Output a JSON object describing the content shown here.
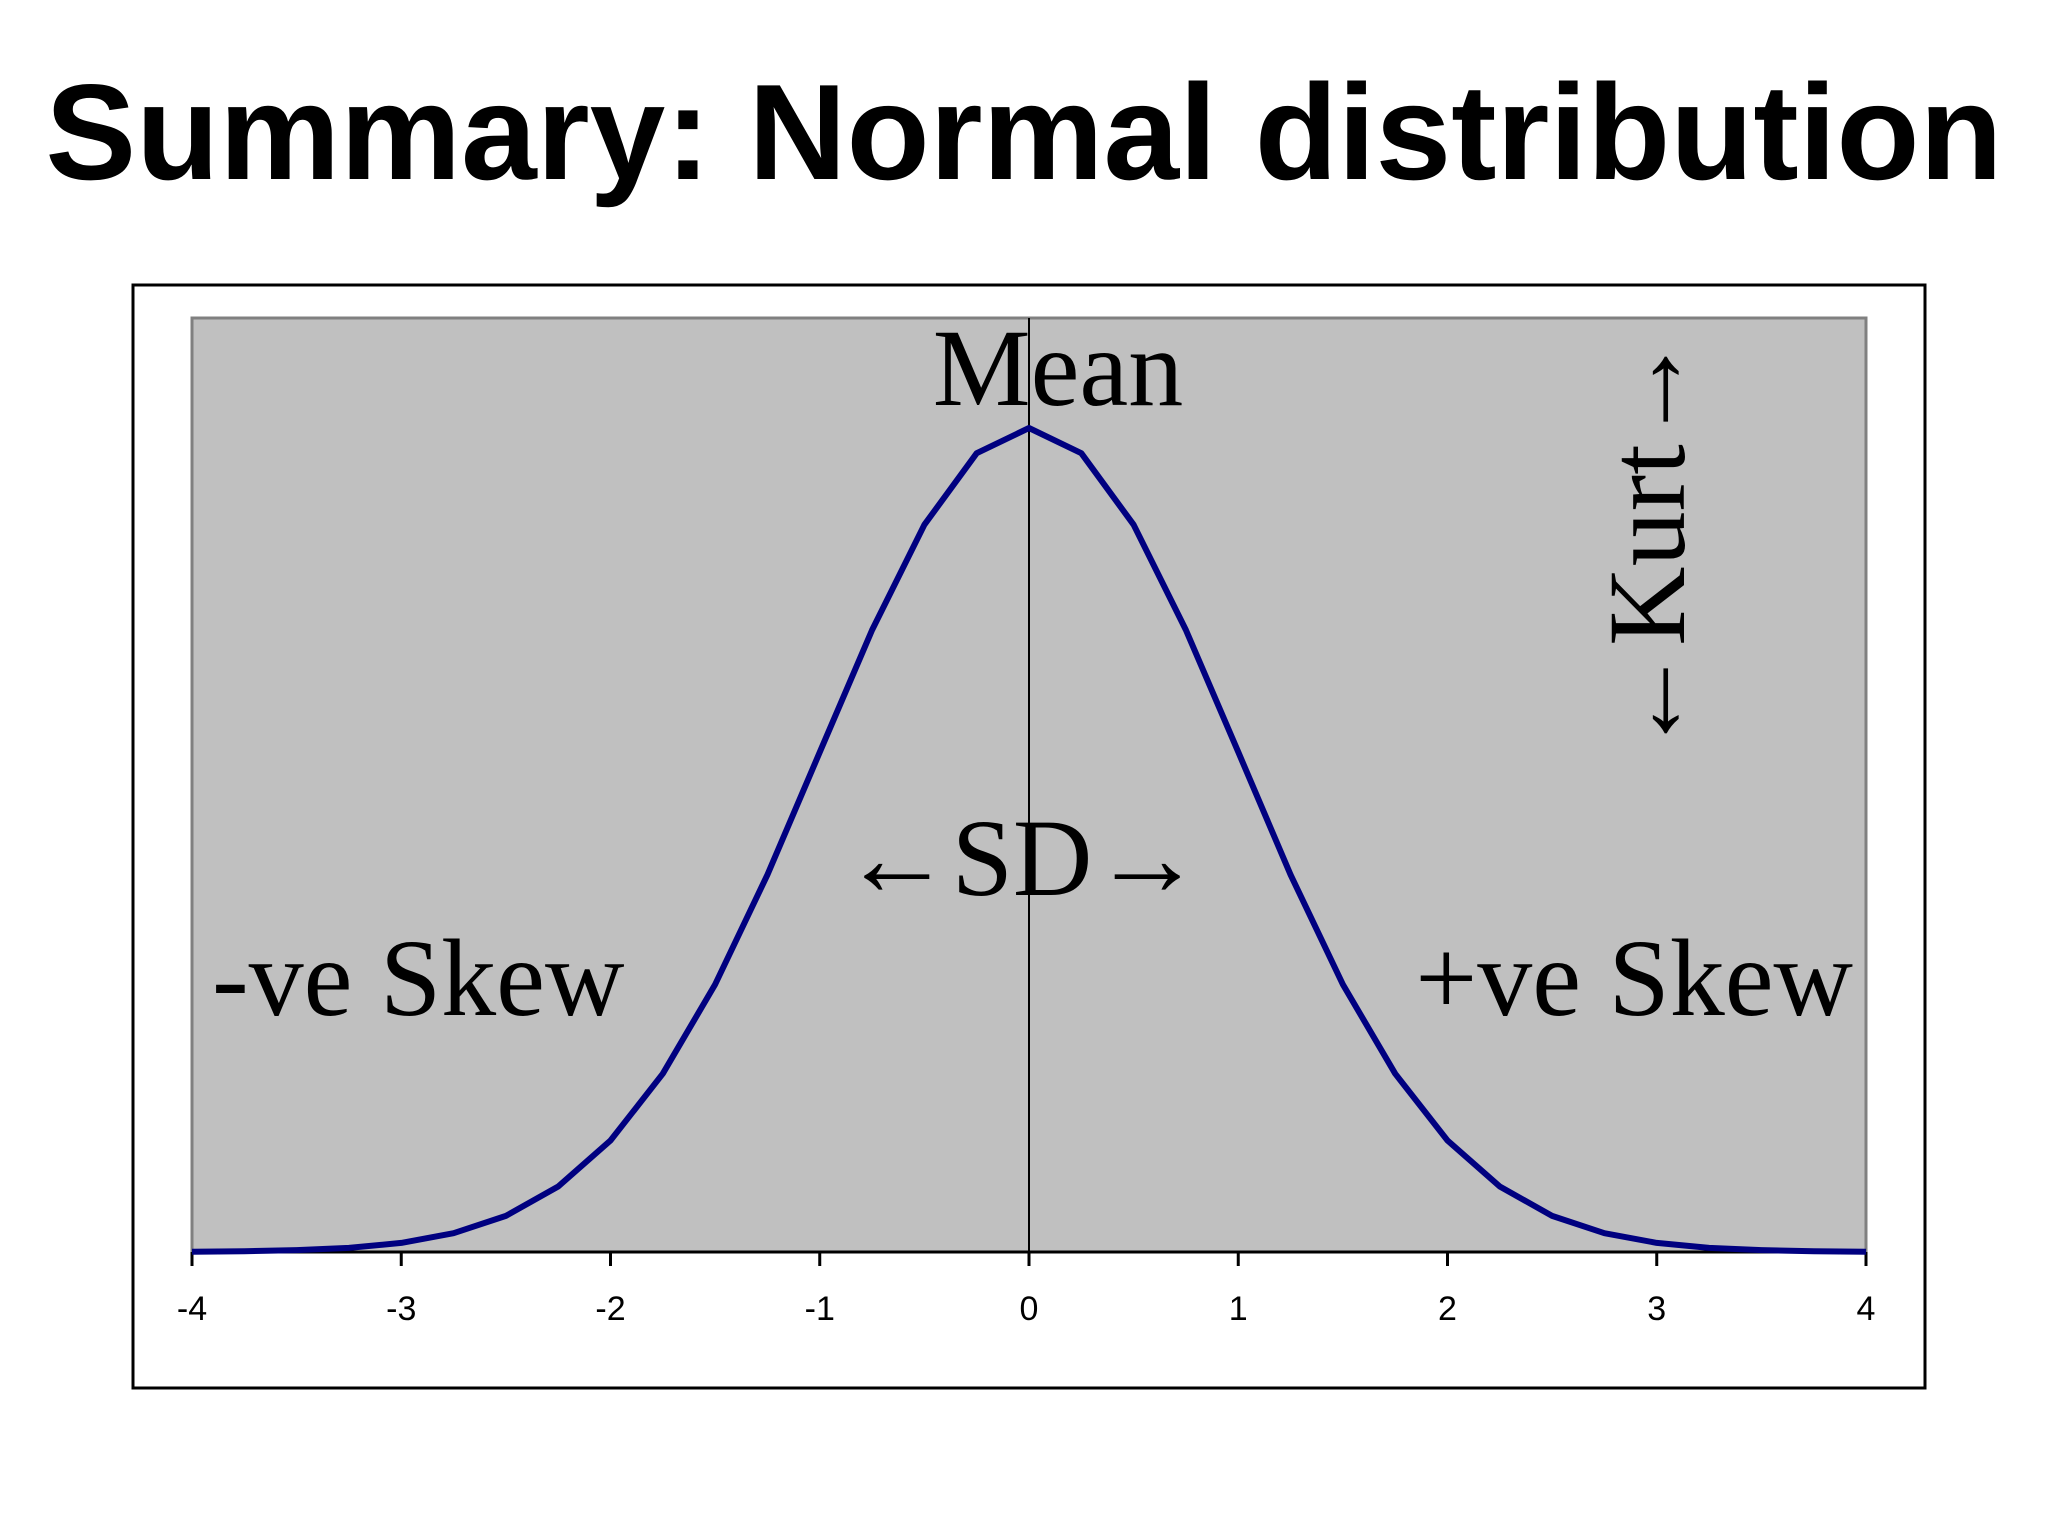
{
  "slide": {
    "title": "Summary: Normal distribution"
  },
  "colors": {
    "plot_area": "#c0c0c0",
    "curve": "#000080",
    "frame": "#000000",
    "plot_border": "#808080",
    "background": "#ffffff"
  },
  "chart_data": {
    "type": "line",
    "title": "",
    "xlabel": "",
    "ylabel": "",
    "xlim": [
      -4,
      4
    ],
    "ylim": [
      0,
      0.42
    ],
    "grid": false,
    "x_ticks": [
      -4,
      -3,
      -2,
      -1,
      0,
      1,
      2,
      3,
      4
    ],
    "x_tick_labels": [
      "-4",
      "-3",
      "-2",
      "-1",
      "0",
      "1",
      "2",
      "3",
      "4"
    ],
    "series": [
      {
        "x": [
          -4,
          -3.75,
          -3.5,
          -3.25,
          -3,
          -2.75,
          -2.5,
          -2.25,
          -2,
          -1.75,
          -1.5,
          -1.25,
          -1,
          -0.75,
          -0.5,
          -0.25,
          0,
          0.25,
          0.5,
          0.75,
          1,
          1.25,
          1.5,
          1.75,
          2,
          2.25,
          2.5,
          2.75,
          3,
          3.25,
          3.5,
          3.75,
          4
        ],
        "y": [
          0.0001,
          0.0004,
          0.0009,
          0.002,
          0.0044,
          0.0091,
          0.0175,
          0.0317,
          0.054,
          0.0863,
          0.1295,
          0.1826,
          0.242,
          0.3011,
          0.3521,
          0.3867,
          0.3989,
          0.3867,
          0.3521,
          0.3011,
          0.242,
          0.1826,
          0.1295,
          0.0863,
          0.054,
          0.0317,
          0.0175,
          0.0091,
          0.0044,
          0.002,
          0.0009,
          0.0004,
          0.0001
        ]
      }
    ],
    "mean_line_x": 0,
    "annotations": {
      "mean": "Mean",
      "sd": "←SD→",
      "neg_skew": "-ve Skew",
      "pos_skew": "+ve Skew",
      "kurt": "←Kurt→"
    }
  }
}
